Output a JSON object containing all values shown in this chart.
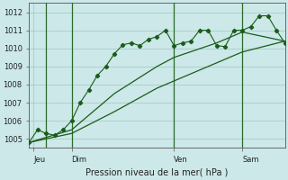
{
  "xlabel": "Pression niveau de la mer( hPa )",
  "bg_color": "#cce8e8",
  "grid_color": "#a0c8c8",
  "line_color": "#1a5c1a",
  "sep_color": "#2a6a2a",
  "ylim": [
    1004.5,
    1012.5
  ],
  "xlim": [
    0,
    30
  ],
  "day_ticks": [
    0.5,
    5,
    17,
    25
  ],
  "day_labels": [
    "Jeu",
    "Dim",
    "Ven",
    "Sam"
  ],
  "day_vlines": [
    2,
    5,
    17,
    25
  ],
  "yticks": [
    1005,
    1006,
    1007,
    1008,
    1009,
    1010,
    1011,
    1012
  ],
  "series1": [
    [
      0,
      1004.8
    ],
    [
      1,
      1005.5
    ],
    [
      2,
      1005.3
    ],
    [
      3,
      1005.2
    ],
    [
      4,
      1005.5
    ],
    [
      5,
      1006.0
    ],
    [
      6,
      1007.0
    ],
    [
      7,
      1007.7
    ],
    [
      8,
      1008.5
    ],
    [
      9,
      1009.0
    ],
    [
      10,
      1009.7
    ],
    [
      11,
      1010.2
    ],
    [
      12,
      1010.3
    ],
    [
      13,
      1010.15
    ],
    [
      14,
      1010.5
    ],
    [
      15,
      1010.65
    ],
    [
      16,
      1011.0
    ],
    [
      17,
      1010.15
    ],
    [
      18,
      1010.3
    ],
    [
      19,
      1010.4
    ],
    [
      20,
      1011.0
    ],
    [
      21,
      1011.0
    ],
    [
      22,
      1010.15
    ],
    [
      23,
      1010.1
    ],
    [
      24,
      1011.0
    ],
    [
      25,
      1011.0
    ],
    [
      26,
      1011.2
    ],
    [
      27,
      1011.8
    ],
    [
      28,
      1011.8
    ],
    [
      29,
      1011.0
    ],
    [
      30,
      1010.3
    ]
  ],
  "series2": [
    [
      0,
      1004.8
    ],
    [
      5,
      1005.5
    ],
    [
      10,
      1007.5
    ],
    [
      15,
      1009.0
    ],
    [
      17,
      1009.5
    ],
    [
      22,
      1010.3
    ],
    [
      25,
      1010.9
    ],
    [
      30,
      1010.4
    ]
  ],
  "series3": [
    [
      0,
      1004.8
    ],
    [
      5,
      1005.3
    ],
    [
      10,
      1006.5
    ],
    [
      15,
      1007.8
    ],
    [
      17,
      1008.2
    ],
    [
      22,
      1009.2
    ],
    [
      25,
      1009.8
    ],
    [
      30,
      1010.4
    ]
  ]
}
